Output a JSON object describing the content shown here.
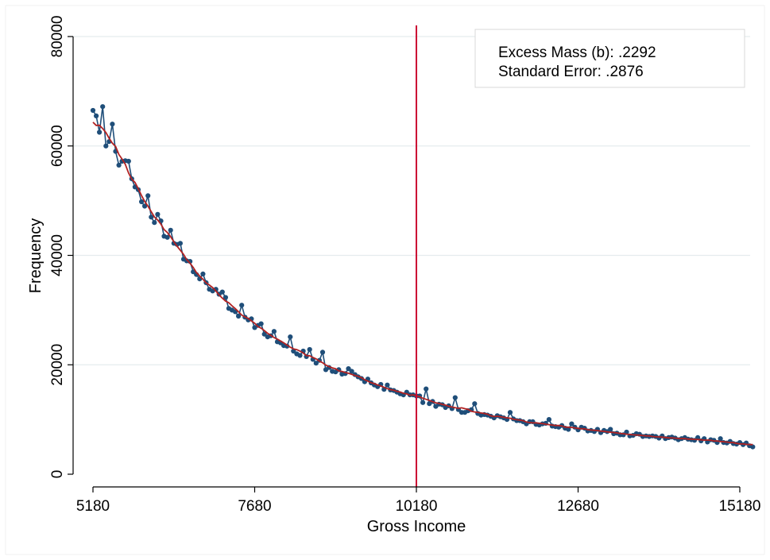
{
  "chart_data": {
    "type": "line",
    "xlabel": "Gross Income",
    "ylabel": "Frequency",
    "x_ticks": [
      5180,
      7680,
      10180,
      12680,
      15180
    ],
    "y_ticks": [
      0,
      20000,
      40000,
      60000,
      80000
    ],
    "xlim": [
      5180,
      15180
    ],
    "ylim": [
      0,
      80000
    ],
    "grid": "horizontal",
    "threshold_x": 10180,
    "annotation": {
      "line1": "Excess Mass (b): .2292",
      "line2": "Standard Error: .2876"
    },
    "colors": {
      "observed": "#1f4e79",
      "fitted": "#b22222",
      "threshold": "#cc0033",
      "grid": "#e5ecee"
    },
    "observed_x_start": 5180,
    "observed_x_step": 50,
    "observed_y": [
      66500,
      65500,
      62500,
      67200,
      60000,
      60800,
      64000,
      59000,
      56500,
      57200,
      57300,
      57200,
      54000,
      52500,
      52000,
      49800,
      49000,
      50900,
      47000,
      46000,
      47500,
      46300,
      43500,
      43300,
      44600,
      42200,
      42000,
      42200,
      39300,
      39000,
      38900,
      37000,
      36500,
      35700,
      36600,
      35000,
      33800,
      33500,
      33800,
      32900,
      33300,
      32300,
      30300,
      30000,
      29700,
      28900,
      30900,
      28700,
      28200,
      28400,
      26800,
      27200,
      27500,
      25600,
      25100,
      25300,
      26100,
      24200,
      24000,
      23500,
      23400,
      25100,
      22500,
      22000,
      21700,
      22500,
      21500,
      22800,
      21000,
      20300,
      20800,
      22300,
      19100,
      19500,
      18800,
      18700,
      19100,
      18300,
      18400,
      19300,
      18800,
      18200,
      17800,
      17500,
      16900,
      17400,
      16700,
      16300,
      16000,
      16400,
      15500,
      16300,
      15400,
      15300,
      15000,
      14700,
      14500,
      15000,
      14500,
      14500,
      14300,
      14300,
      13100,
      15600,
      12900,
      13300,
      12400,
      12800,
      12700,
      12200,
      12500,
      12000,
      14000,
      11800,
      11300,
      11300,
      11600,
      11800,
      12900,
      11100,
      10800,
      10900,
      10800,
      10600,
      10300,
      10700,
      10500,
      10300,
      10000,
      11300,
      10100,
      9800,
      9800,
      9600,
      9200,
      9600,
      9600,
      9100,
      9000,
      9200,
      9300,
      10000,
      8800,
      8700,
      8600,
      8900,
      8400,
      8200,
      9200,
      8600,
      8100,
      8600,
      8400,
      7900,
      8000,
      7800,
      8200,
      7600,
      8000,
      7800,
      8200,
      7400,
      7500,
      7200,
      7200,
      7700,
      7000,
      7100,
      7400,
      7300,
      6900,
      7000,
      6900,
      7000,
      6900,
      6600,
      7000,
      6500,
      6700,
      6800,
      6600,
      6300,
      6500,
      6700,
      6400,
      6300,
      6200,
      6700,
      6100,
      6500,
      5900,
      6300,
      6200,
      5800,
      6500,
      5800,
      5700,
      6000,
      5600,
      5500,
      5800,
      5400,
      5700,
      5200,
      5000
    ]
  }
}
